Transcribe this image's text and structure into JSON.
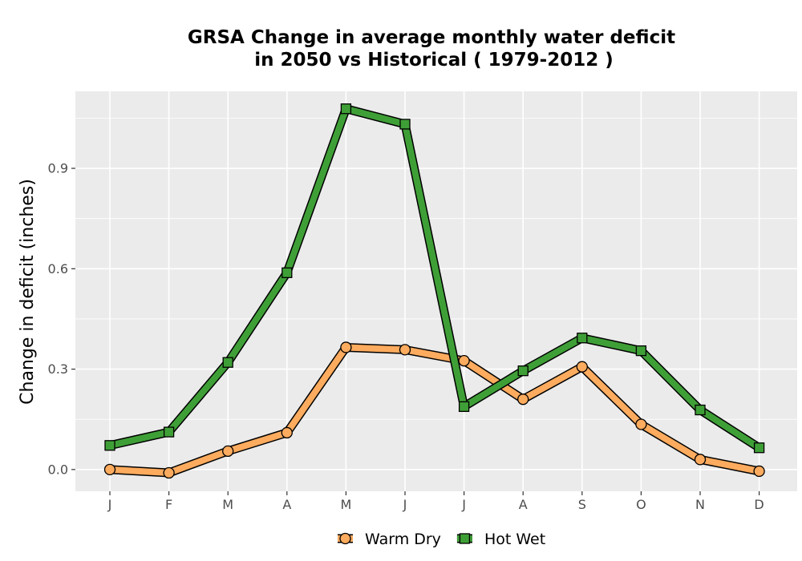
{
  "chart_data": {
    "type": "line",
    "title_lines": [
      "GRSA  Change in average monthly water deficit",
      "in 2050 vs Historical ( 1979-2012 )"
    ],
    "xlabel": "",
    "ylabel": "Change in deficit (inches)",
    "categories": [
      "J",
      "F",
      "M",
      "A",
      "M",
      "J",
      "J",
      "A",
      "S",
      "O",
      "N",
      "D"
    ],
    "ylim": [
      -0.065,
      1.13
    ],
    "yticks": [
      0.0,
      0.3,
      0.6,
      0.9
    ],
    "ytick_labels": [
      "0.0",
      "0.3",
      "0.6",
      "0.9"
    ],
    "grid": true,
    "legend_position": "bottom",
    "series": [
      {
        "name": "Warm Dry",
        "marker": "circle",
        "color": "#fdab5e",
        "values": [
          0.0,
          -0.01,
          0.055,
          0.11,
          0.365,
          0.358,
          0.325,
          0.21,
          0.307,
          0.135,
          0.03,
          -0.005
        ]
      },
      {
        "name": "Hot Wet",
        "marker": "square",
        "color": "#3f9f37",
        "values": [
          0.072,
          0.112,
          0.32,
          0.588,
          1.078,
          1.032,
          0.188,
          0.295,
          0.393,
          0.355,
          0.178,
          0.065
        ]
      }
    ]
  }
}
